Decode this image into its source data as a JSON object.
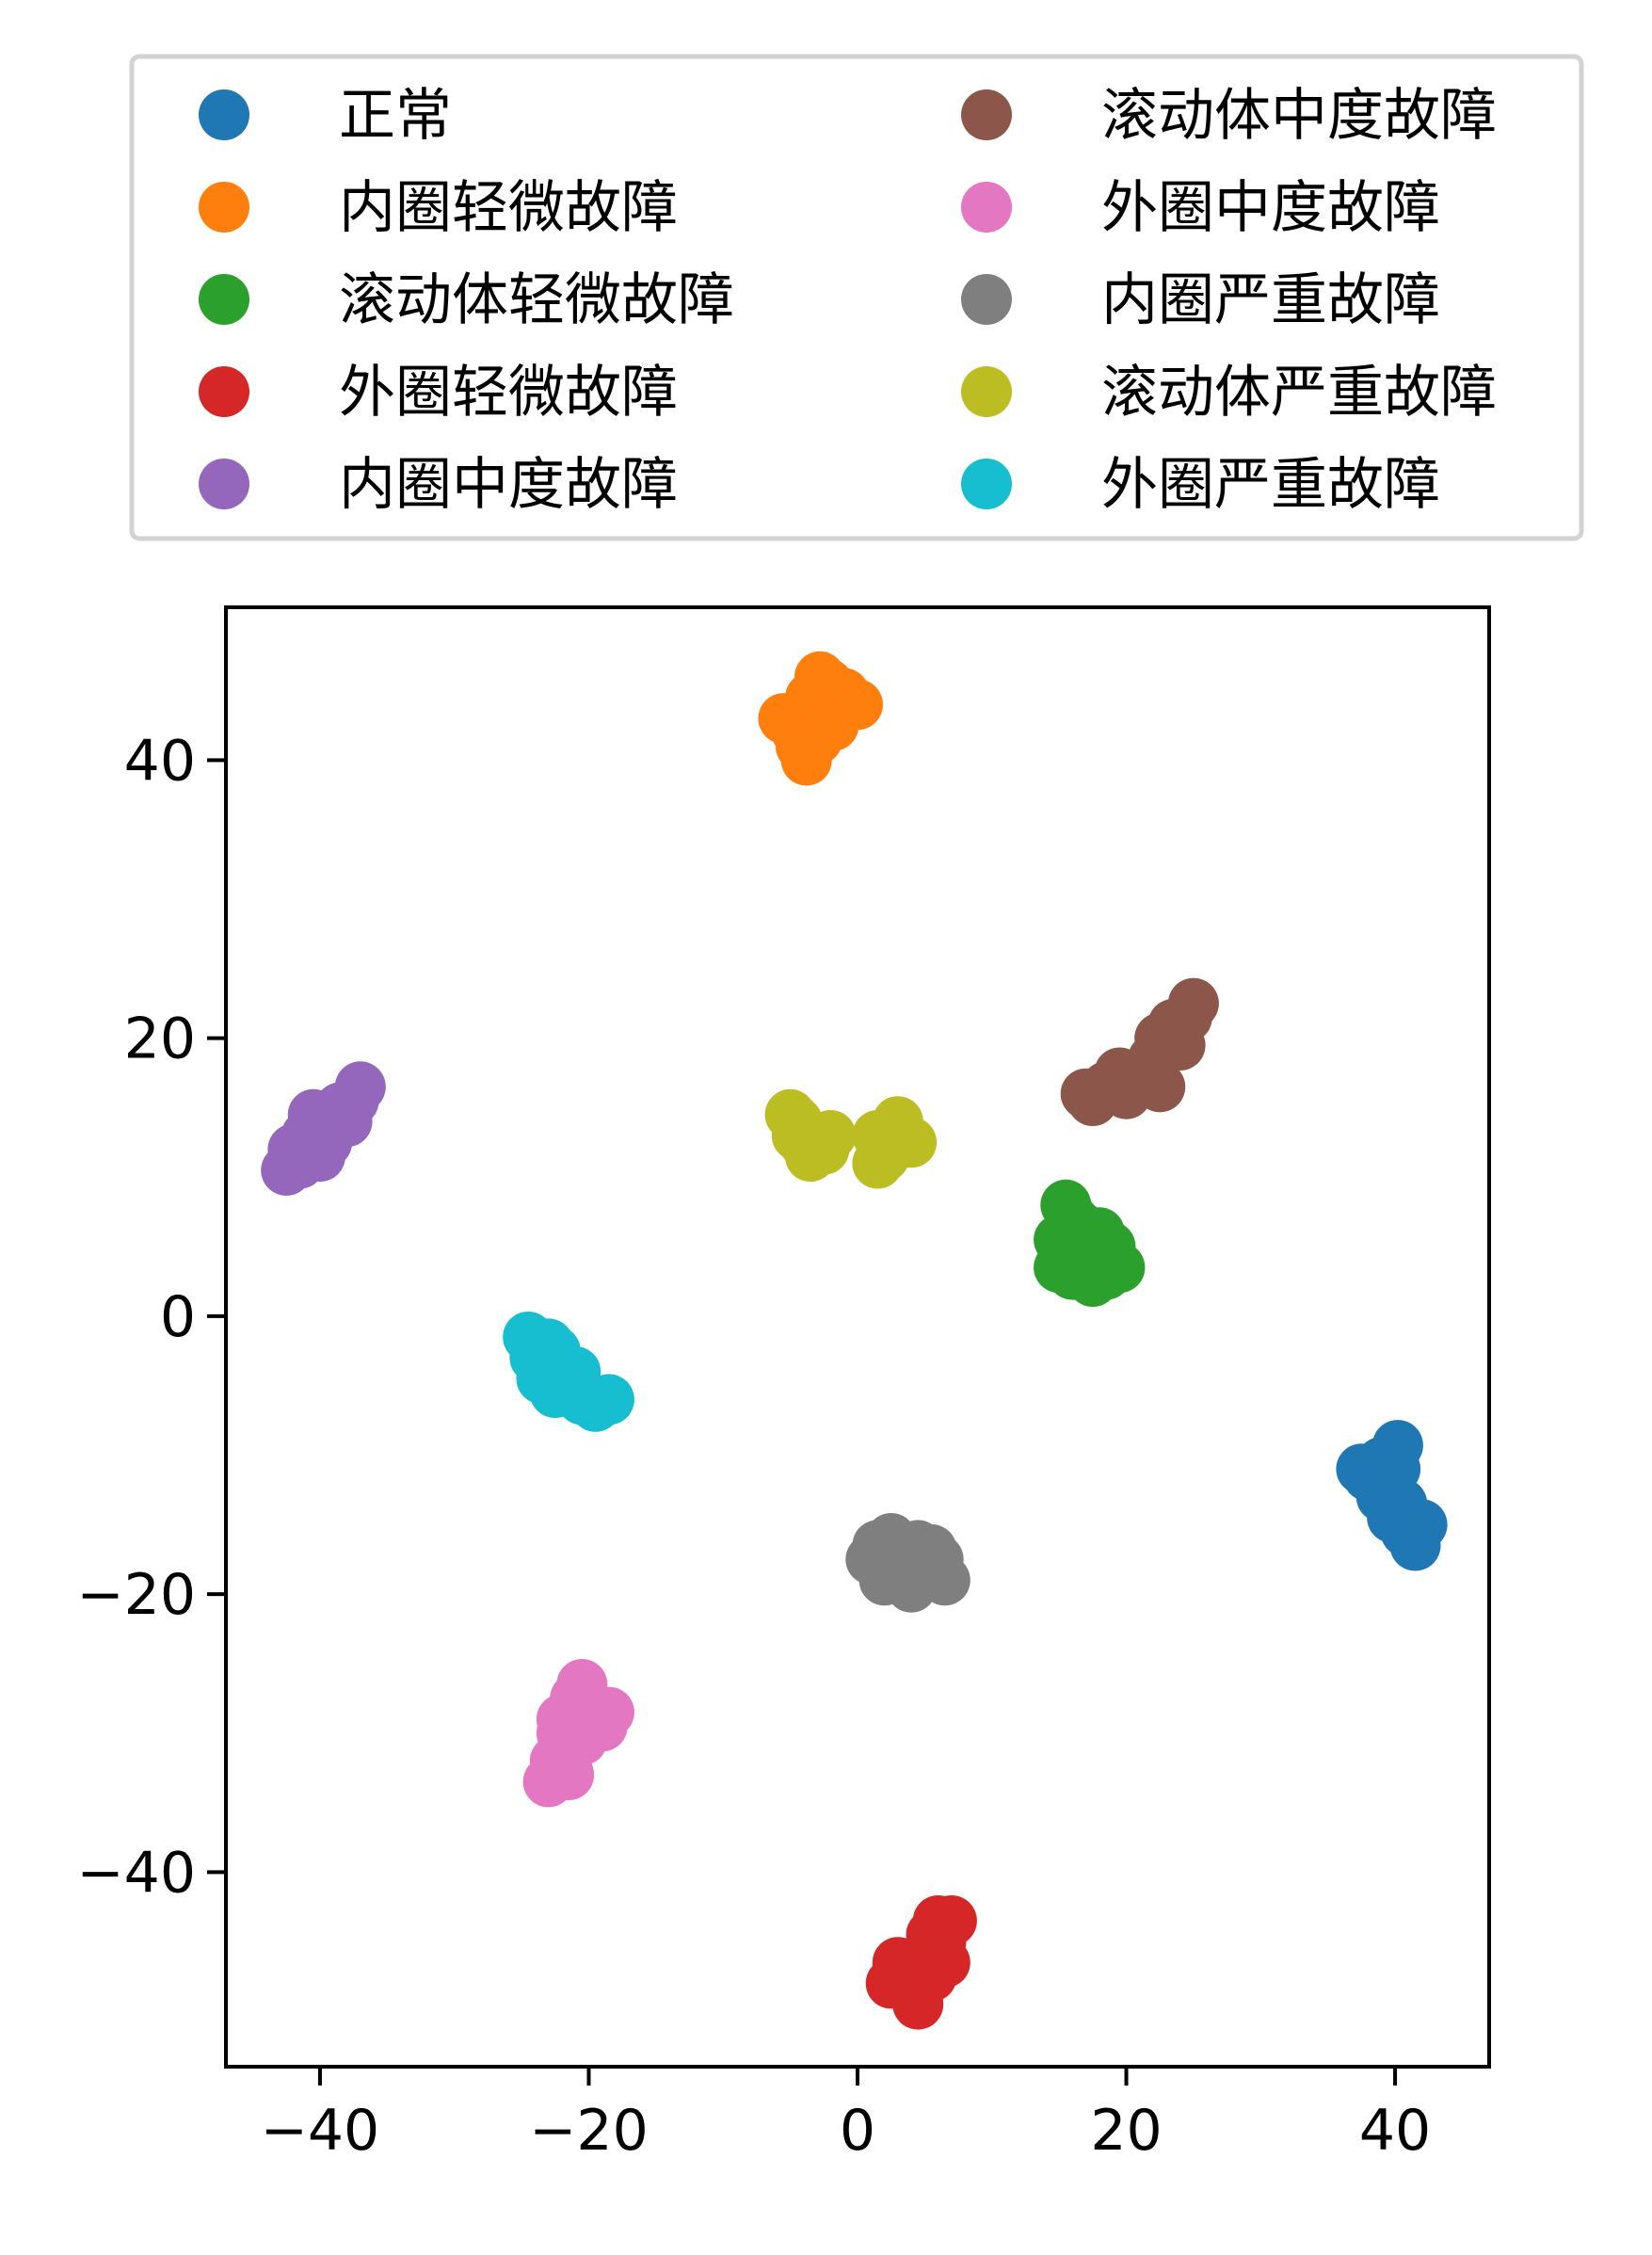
{
  "chart_data": {
    "type": "scatter",
    "title": "",
    "xlabel": "",
    "ylabel": "",
    "xlim": [
      -47,
      47
    ],
    "ylim": [
      -54,
      51
    ],
    "xticks": [
      -40,
      -20,
      0,
      20,
      40
    ],
    "yticks": [
      -40,
      -20,
      0,
      20,
      40
    ],
    "xtick_labels": [
      "−40",
      "−20",
      "0",
      "20",
      "40"
    ],
    "ytick_labels": [
      "−40",
      "−20",
      "0",
      "20",
      "40"
    ],
    "grid": false,
    "legend_placement": "top, above plot, two columns",
    "series": [
      {
        "name": "正常",
        "color": "#1f77b4",
        "points": [
          [
            38.0,
            -11.5
          ],
          [
            39.0,
            -10.5
          ],
          [
            40.2,
            -9.3
          ],
          [
            39.5,
            -12.0
          ],
          [
            40.5,
            -13.5
          ],
          [
            39.8,
            -14.5
          ],
          [
            40.8,
            -15.5
          ],
          [
            41.5,
            -16.5
          ],
          [
            42.0,
            -15.0
          ],
          [
            39.0,
            -13.0
          ],
          [
            37.5,
            -11.0
          ],
          [
            40.0,
            -11.0
          ]
        ]
      },
      {
        "name": "内圈轻微故障",
        "color": "#ff7f0e",
        "points": [
          [
            -5.5,
            43.0
          ],
          [
            -4.5,
            42.0
          ],
          [
            -3.8,
            40.0
          ],
          [
            -3.0,
            41.5
          ],
          [
            -2.5,
            43.5
          ],
          [
            -2.2,
            45.5
          ],
          [
            -1.0,
            44.8
          ],
          [
            0.0,
            44.0
          ],
          [
            -3.5,
            44.5
          ],
          [
            -4.2,
            41.0
          ],
          [
            -1.8,
            42.5
          ],
          [
            -2.8,
            46.0
          ]
        ]
      },
      {
        "name": "滚动体轻微故障",
        "color": "#2ca02c",
        "points": [
          [
            15.0,
            5.5
          ],
          [
            15.5,
            8.0
          ],
          [
            16.0,
            3.0
          ],
          [
            16.5,
            6.5
          ],
          [
            17.0,
            4.5
          ],
          [
            18.0,
            6.0
          ],
          [
            18.5,
            3.0
          ],
          [
            19.5,
            3.5
          ],
          [
            17.5,
            2.5
          ],
          [
            15.0,
            3.5
          ],
          [
            16.0,
            7.0
          ],
          [
            18.8,
            5.0
          ]
        ]
      },
      {
        "name": "外圈轻微故障",
        "color": "#d62728",
        "points": [
          [
            2.5,
            -48.0
          ],
          [
            3.5,
            -47.0
          ],
          [
            4.5,
            -49.5
          ],
          [
            5.0,
            -46.0
          ],
          [
            5.5,
            -44.5
          ],
          [
            6.0,
            -43.5
          ],
          [
            7.0,
            -43.5
          ],
          [
            6.5,
            -46.5
          ],
          [
            4.0,
            -48.5
          ],
          [
            5.5,
            -47.5
          ],
          [
            3.0,
            -46.5
          ],
          [
            6.2,
            -45.0
          ]
        ]
      },
      {
        "name": "内圈中度故障",
        "color": "#9467bd",
        "points": [
          [
            -42.5,
            10.5
          ],
          [
            -42.0,
            12.0
          ],
          [
            -41.0,
            13.0
          ],
          [
            -40.5,
            14.5
          ],
          [
            -39.5,
            12.5
          ],
          [
            -38.5,
            15.0
          ],
          [
            -38.0,
            14.0
          ],
          [
            -37.0,
            16.5
          ],
          [
            -40.0,
            11.5
          ],
          [
            -41.5,
            11.0
          ],
          [
            -39.0,
            13.5
          ],
          [
            -37.5,
            15.5
          ]
        ]
      },
      {
        "name": "滚动体中度故障",
        "color": "#8c564b",
        "points": [
          [
            17.0,
            16.0
          ],
          [
            17.5,
            15.5
          ],
          [
            18.5,
            16.5
          ],
          [
            19.5,
            17.5
          ],
          [
            21.0,
            17.0
          ],
          [
            22.0,
            18.5
          ],
          [
            22.5,
            16.5
          ],
          [
            22.5,
            20.0
          ],
          [
            23.5,
            21.0
          ],
          [
            24.0,
            19.5
          ],
          [
            25.0,
            22.5
          ],
          [
            24.5,
            21.5
          ],
          [
            20.0,
            16.0
          ]
        ]
      },
      {
        "name": "外圈中度故障",
        "color": "#e377c2",
        "points": [
          [
            -23.0,
            -33.5
          ],
          [
            -22.5,
            -32.0
          ],
          [
            -21.5,
            -31.5
          ],
          [
            -22.0,
            -30.0
          ],
          [
            -22.0,
            -29.0
          ],
          [
            -21.0,
            -27.5
          ],
          [
            -20.5,
            -26.5
          ],
          [
            -20.0,
            -28.5
          ],
          [
            -19.0,
            -29.5
          ],
          [
            -18.5,
            -28.5
          ],
          [
            -21.5,
            -33.0
          ],
          [
            -20.5,
            -30.5
          ]
        ]
      },
      {
        "name": "内圈严重故障",
        "color": "#7f7f7f",
        "points": [
          [
            1.0,
            -17.5
          ],
          [
            1.5,
            -16.5
          ],
          [
            2.0,
            -19.0
          ],
          [
            2.5,
            -16.0
          ],
          [
            3.5,
            -17.5
          ],
          [
            4.0,
            -19.5
          ],
          [
            4.5,
            -16.5
          ],
          [
            5.0,
            -18.5
          ],
          [
            6.0,
            -17.5
          ],
          [
            6.5,
            -19.0
          ],
          [
            3.0,
            -18.5
          ],
          [
            5.5,
            -16.8
          ]
        ]
      },
      {
        "name": "滚动体严重故障",
        "color": "#bcbd22",
        "points": [
          [
            -5.0,
            14.5
          ],
          [
            -4.5,
            13.0
          ],
          [
            -4.0,
            12.5
          ],
          [
            -3.5,
            11.5
          ],
          [
            -2.5,
            12.0
          ],
          [
            -2.0,
            13.0
          ],
          [
            -4.5,
            14.0
          ],
          [
            1.5,
            11.0
          ],
          [
            1.5,
            13.0
          ],
          [
            2.5,
            12.5
          ],
          [
            3.0,
            14.0
          ],
          [
            4.0,
            12.5
          ],
          [
            2.0,
            11.5
          ]
        ]
      },
      {
        "name": "外圈严重故障",
        "color": "#17becf",
        "points": [
          [
            -24.5,
            -1.5
          ],
          [
            -24.0,
            -3.0
          ],
          [
            -23.0,
            -2.0
          ],
          [
            -23.5,
            -4.5
          ],
          [
            -22.5,
            -5.5
          ],
          [
            -22.0,
            -3.5
          ],
          [
            -21.5,
            -5.0
          ],
          [
            -21.0,
            -4.0
          ],
          [
            -20.5,
            -6.0
          ],
          [
            -19.5,
            -6.5
          ],
          [
            -18.5,
            -6.0
          ],
          [
            -22.5,
            -2.5
          ]
        ]
      }
    ]
  }
}
